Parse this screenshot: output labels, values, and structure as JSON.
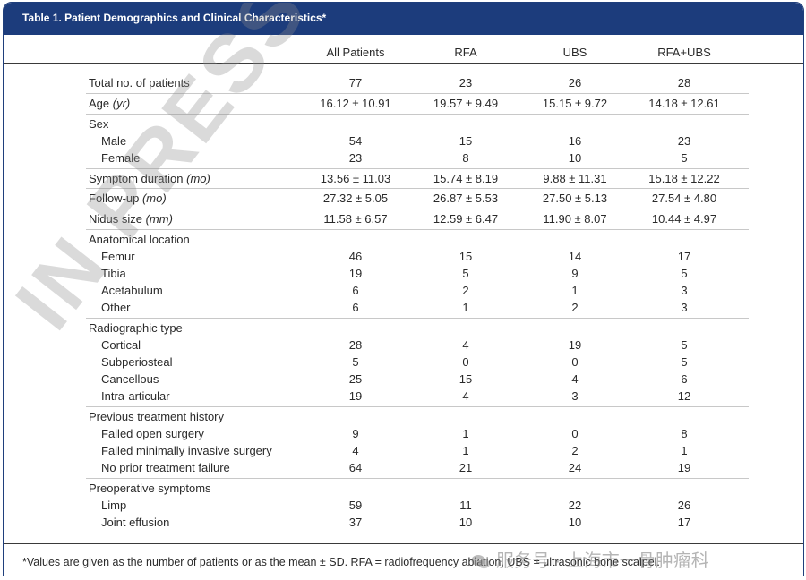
{
  "title": "Table 1.  Patient Demographics and Clinical Characteristics*",
  "columns": [
    "All Patients",
    "RFA",
    "UBS",
    "RFA+UBS"
  ],
  "rows": [
    {
      "label": "Total no. of patients",
      "unit": "",
      "sub": false,
      "values": [
        "77",
        "23",
        "26",
        "28"
      ]
    },
    {
      "label": "Age ",
      "unit": "(yr)",
      "sub": false,
      "values": [
        "16.12 ± 10.91",
        "19.57 ± 9.49",
        "15.15 ± 9.72",
        "14.18 ± 12.61"
      ]
    },
    {
      "label": "Sex",
      "unit": "",
      "sub": false,
      "values": [
        "",
        "",
        "",
        ""
      ]
    },
    {
      "label": "Male",
      "unit": "",
      "sub": true,
      "values": [
        "54",
        "15",
        "16",
        "23"
      ]
    },
    {
      "label": "Female",
      "unit": "",
      "sub": true,
      "values": [
        "23",
        "8",
        "10",
        "5"
      ]
    },
    {
      "label": "Symptom duration ",
      "unit": "(mo)",
      "sub": false,
      "values": [
        "13.56 ± 11.03",
        "15.74 ± 8.19",
        "9.88 ± 11.31",
        "15.18 ± 12.22"
      ]
    },
    {
      "label": "Follow-up ",
      "unit": "(mo)",
      "sub": false,
      "values": [
        "27.32 ± 5.05",
        "26.87 ± 5.53",
        "27.50 ± 5.13",
        "27.54 ± 4.80"
      ]
    },
    {
      "label": "Nidus size ",
      "unit": "(mm)",
      "sub": false,
      "values": [
        "11.58 ± 6.57",
        "12.59 ± 6.47",
        "11.90 ± 8.07",
        "10.44 ± 4.97"
      ]
    },
    {
      "label": "Anatomical location",
      "unit": "",
      "sub": false,
      "values": [
        "",
        "",
        "",
        ""
      ]
    },
    {
      "label": "Femur",
      "unit": "",
      "sub": true,
      "values": [
        "46",
        "15",
        "14",
        "17"
      ]
    },
    {
      "label": "Tibia",
      "unit": "",
      "sub": true,
      "values": [
        "19",
        "5",
        "9",
        "5"
      ]
    },
    {
      "label": "Acetabulum",
      "unit": "",
      "sub": true,
      "values": [
        "6",
        "2",
        "1",
        "3"
      ]
    },
    {
      "label": "Other",
      "unit": "",
      "sub": true,
      "values": [
        "6",
        "1",
        "2",
        "3"
      ]
    },
    {
      "label": "Radiographic type",
      "unit": "",
      "sub": false,
      "values": [
        "",
        "",
        "",
        ""
      ]
    },
    {
      "label": "Cortical",
      "unit": "",
      "sub": true,
      "values": [
        "28",
        "4",
        "19",
        "5"
      ]
    },
    {
      "label": "Subperiosteal",
      "unit": "",
      "sub": true,
      "values": [
        "5",
        "0",
        "0",
        "5"
      ]
    },
    {
      "label": "Cancellous",
      "unit": "",
      "sub": true,
      "values": [
        "25",
        "15",
        "4",
        "6"
      ]
    },
    {
      "label": "Intra-articular",
      "unit": "",
      "sub": true,
      "values": [
        "19",
        "4",
        "3",
        "12"
      ]
    },
    {
      "label": "Previous treatment history",
      "unit": "",
      "sub": false,
      "values": [
        "",
        "",
        "",
        ""
      ]
    },
    {
      "label": "Failed open surgery",
      "unit": "",
      "sub": true,
      "values": [
        "9",
        "1",
        "0",
        "8"
      ]
    },
    {
      "label": "Failed minimally invasive surgery",
      "unit": "",
      "sub": true,
      "values": [
        "4",
        "1",
        "2",
        "1"
      ]
    },
    {
      "label": "No prior treatment failure",
      "unit": "",
      "sub": true,
      "values": [
        "64",
        "21",
        "24",
        "19"
      ]
    },
    {
      "label": "Preoperative symptoms",
      "unit": "",
      "sub": false,
      "values": [
        "",
        "",
        "",
        ""
      ]
    },
    {
      "label": "Limp",
      "unit": "",
      "sub": true,
      "values": [
        "59",
        "11",
        "22",
        "26"
      ]
    },
    {
      "label": "Joint effusion",
      "unit": "",
      "sub": true,
      "values": [
        "37",
        "10",
        "10",
        "17"
      ]
    }
  ],
  "footnote": "*Values are given as the number of patients or as the mean ± SD. RFA = radiofrequency ablation, UBS = ultrasonic bone scalpel.",
  "watermark": "IN PRESS AT",
  "source_mark": "服务号 · 上海市一骨肿瘤科",
  "colors": {
    "header_bar": "#1c3c7c",
    "text": "#2a2a2a",
    "separator": "#c8c8c8"
  }
}
